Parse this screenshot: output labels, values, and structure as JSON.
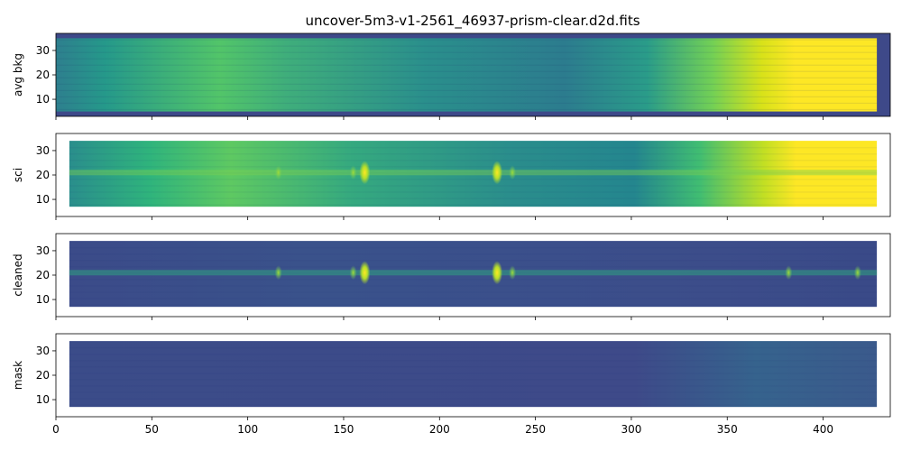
{
  "chart_data": {
    "type": "heatmap",
    "title": "uncover-5m3-v1-2561_46937-prism-clear.d2d.fits",
    "xlim": [
      0,
      435
    ],
    "x_ticks": [
      0,
      50,
      100,
      150,
      200,
      250,
      300,
      350,
      400
    ],
    "xlabel": "",
    "colormap": "viridis",
    "panels": [
      {
        "name": "avg-bkg-panel",
        "ylabel": "avg bkg",
        "ylim": [
          3,
          37
        ],
        "y_ticks": [
          10,
          20,
          30
        ],
        "data_extent": {
          "x": [
            0,
            428
          ],
          "y": [
            5,
            35
          ]
        },
        "features": [
          "background rises toward long wavelengths; saturated (yellow) beyond x≈370"
        ]
      },
      {
        "name": "sci-panel",
        "ylabel": "sci",
        "ylim": [
          3,
          37
        ],
        "y_ticks": [
          10,
          20,
          30
        ],
        "data_extent": {
          "x": [
            7,
            428
          ],
          "y": [
            7,
            34
          ]
        },
        "trace_y": 21,
        "emission_lines_x": [
          116,
          155,
          161,
          230,
          238
        ],
        "features": [
          "bright background toward long wavelengths"
        ]
      },
      {
        "name": "cleaned-panel",
        "ylabel": "cleaned",
        "ylim": [
          3,
          37
        ],
        "y_ticks": [
          10,
          20,
          30
        ],
        "data_extent": {
          "x": [
            7,
            428
          ],
          "y": [
            7,
            34
          ]
        },
        "trace_y": 21,
        "emission_lines_x": [
          116,
          155,
          161,
          230,
          238,
          382,
          418
        ]
      },
      {
        "name": "mask-panel",
        "ylabel": "mask",
        "ylim": [
          3,
          37
        ],
        "y_ticks": [
          10,
          20,
          30
        ],
        "data_extent": {
          "x": [
            7,
            428
          ],
          "y": [
            7,
            34
          ]
        }
      }
    ]
  }
}
